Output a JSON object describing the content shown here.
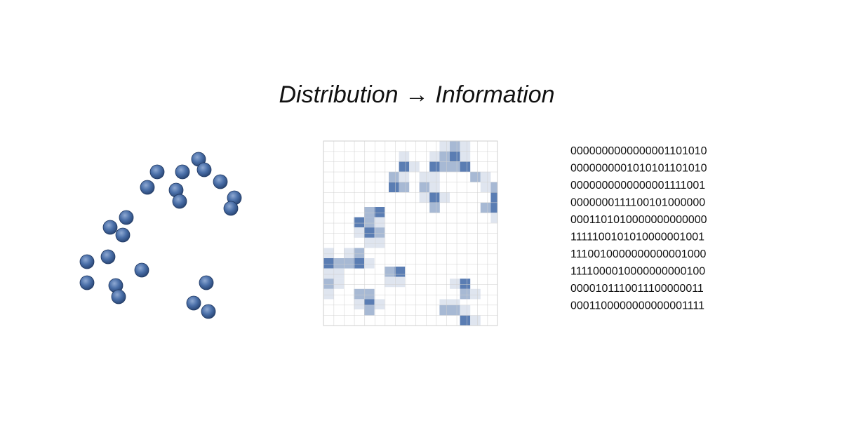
{
  "title": "Distribution → Information",
  "bits": [
    "0000000000000001101010",
    "0000000001010101101010",
    "0000000000000001111001",
    "0000000111100101000000",
    "0001101010000000000000",
    "1111100101010000001001",
    "1110010000000000001000",
    "1111000010000000000100",
    "0000101110011100000011",
    "0001100000000000001111"
  ]
}
